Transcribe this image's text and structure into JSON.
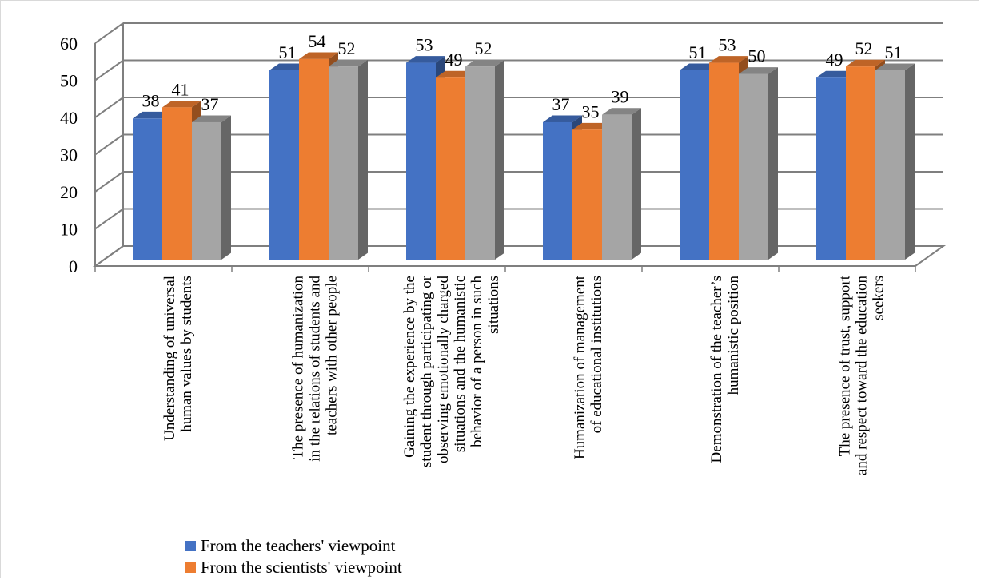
{
  "chart_data": {
    "type": "bar",
    "categories": [
      [
        "Understanding of universal",
        "human values by students"
      ],
      [
        "The presence of humanization",
        "in the relations of students and",
        "teachers with other people"
      ],
      [
        "Gaining the experience by the",
        "student through participating or",
        "observing emotionally charged",
        "situations and the humanistic",
        "behavior of a person in such",
        "situations"
      ],
      [
        "Humanization of management",
        "of educational institutions"
      ],
      [
        "Demonstration of the teacher’s",
        "humanistic position"
      ],
      [
        "The presence of trust, support",
        "and respect toward the education",
        "seekers"
      ]
    ],
    "series": [
      {
        "name": "From the teachers' viewpoint",
        "values": [
          38,
          51,
          53,
          37,
          51,
          49
        ],
        "color": "#4472c4"
      },
      {
        "name": "From the scientists' viewpoint",
        "values": [
          41,
          54,
          49,
          35,
          53,
          52
        ],
        "color": "#ed7d31"
      },
      {
        "name": "",
        "values": [
          37,
          52,
          52,
          39,
          50,
          51
        ],
        "color": "#a5a5a5"
      }
    ],
    "ylim": [
      0,
      60
    ],
    "yticks": [
      0,
      10,
      20,
      30,
      40,
      50,
      60
    ],
    "grid": true,
    "legend_position": "bottom-left"
  }
}
